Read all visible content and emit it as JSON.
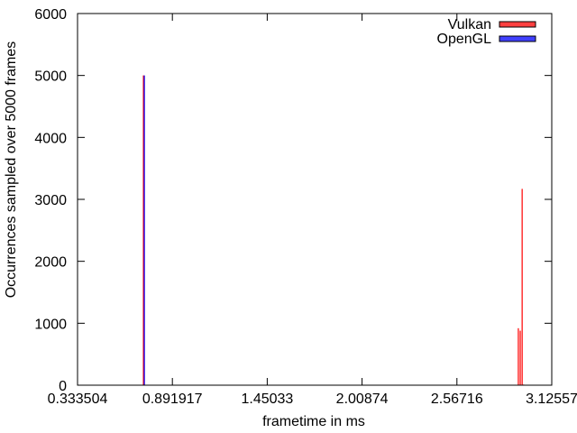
{
  "chart_data": {
    "type": "bar",
    "title": "",
    "xlabel": "frametime in ms",
    "ylabel": "Occurrences sampled over 5000 frames",
    "xlim": [
      0.333504,
      3.12557
    ],
    "ylim": [
      0,
      6000
    ],
    "xticks": [
      "0.333504",
      "0.891917",
      "1.45033",
      "2.00874",
      "2.56716",
      "3.12557"
    ],
    "yticks": [
      "0",
      "1000",
      "2000",
      "3000",
      "4000",
      "5000",
      "6000"
    ],
    "legend_position": "top-right",
    "grid": false,
    "series": [
      {
        "name": "Vulkan",
        "color": "#ff0000",
        "points": [
          {
            "x": 0.7242,
            "y": 5000
          },
          {
            "x": 2.9315,
            "y": 920
          },
          {
            "x": 2.9427,
            "y": 880
          },
          {
            "x": 2.9539,
            "y": 3170
          },
          {
            "x": 2.9623,
            "y": 10
          }
        ]
      },
      {
        "name": "OpenGL",
        "color": "#0000ff",
        "points": [
          {
            "x": 0.7242,
            "y": 5000
          }
        ]
      }
    ]
  }
}
